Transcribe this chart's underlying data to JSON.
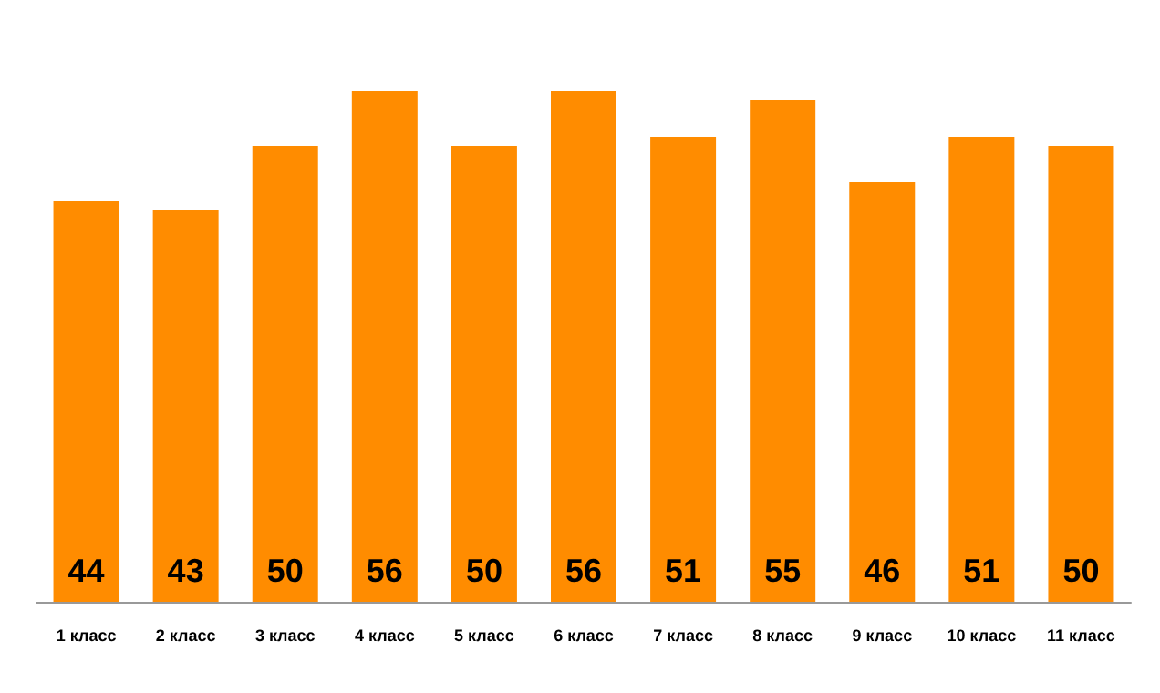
{
  "chart_data": {
    "type": "bar",
    "categories": [
      "1 класс",
      "2 класс",
      "3 класс",
      "4 класс",
      "5 класс",
      "6 класс",
      "7 класс",
      "8 класс",
      "9 класс",
      "10 класс",
      "11 класс"
    ],
    "values": [
      44,
      43,
      50,
      56,
      50,
      56,
      51,
      55,
      46,
      51,
      50
    ],
    "color": "#ff8c00",
    "data_labels": true
  }
}
